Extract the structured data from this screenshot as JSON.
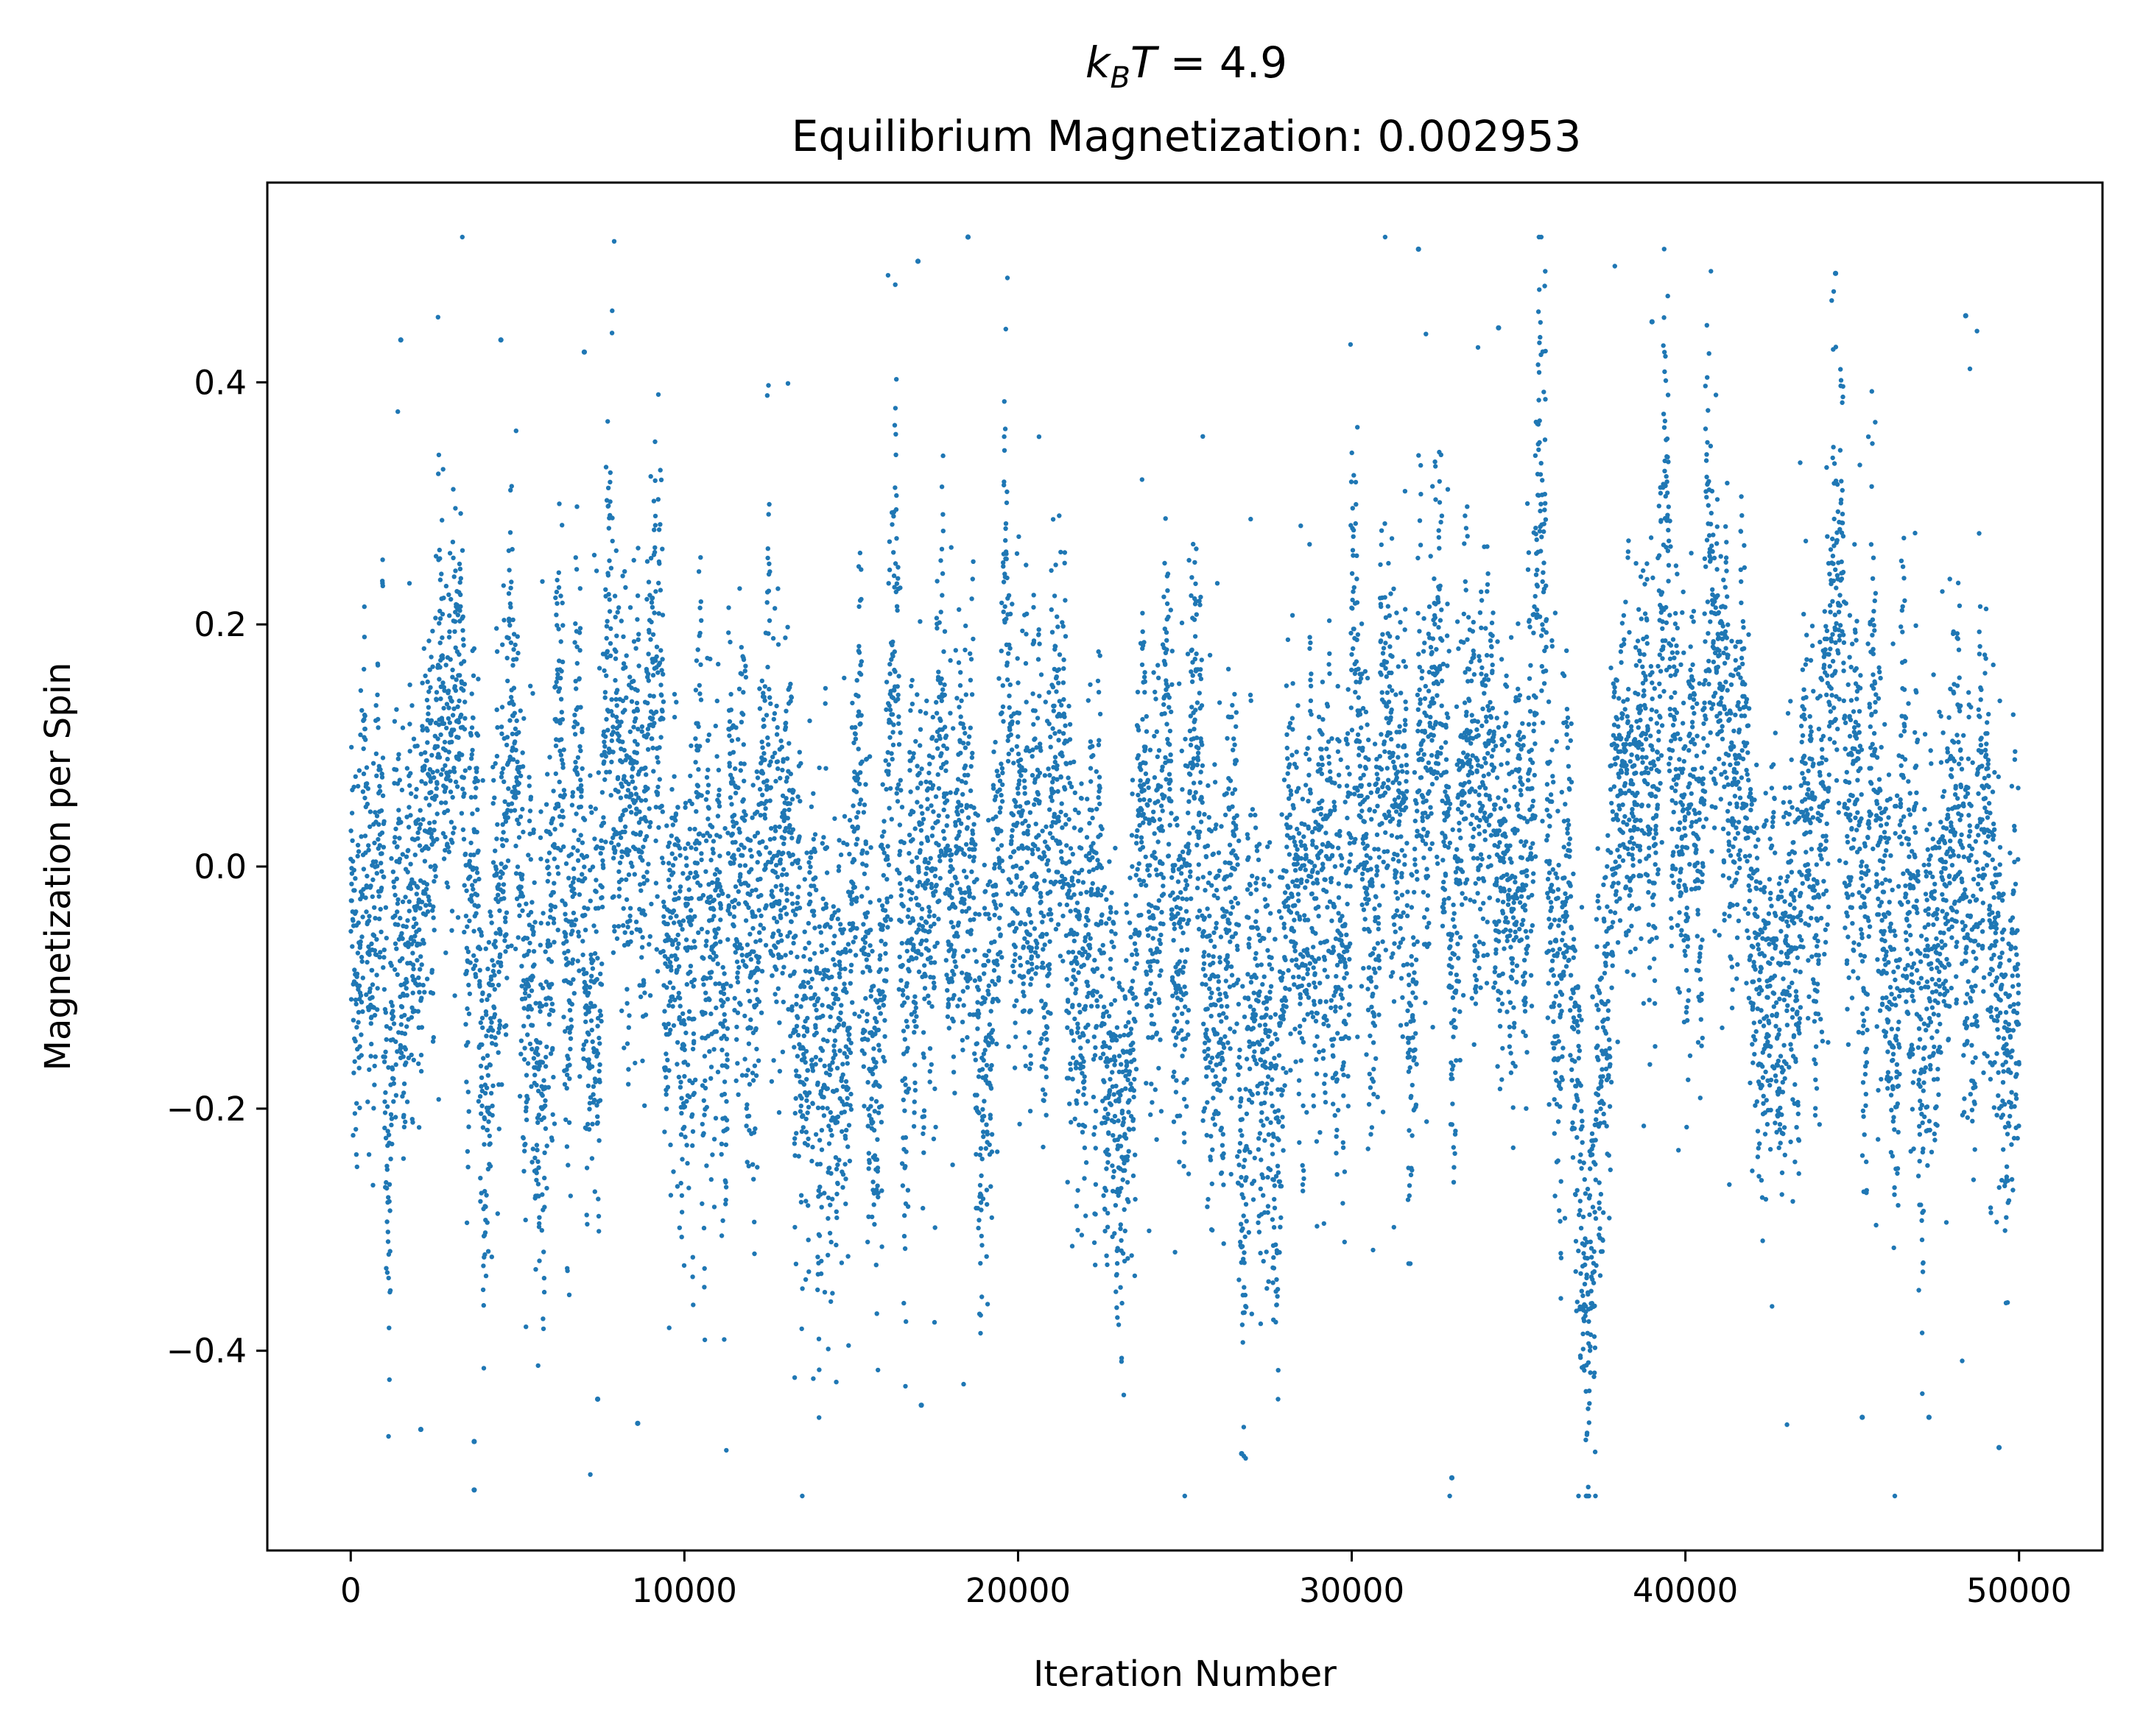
{
  "chart_data": {
    "type": "scatter",
    "title": {
      "line1_k": "k",
      "line1_sub": "B",
      "line1_T": "T",
      "line1_rest": " = 4.9",
      "line2": "Equilibrium Magnetization: 0.002953"
    },
    "xlabel": "Iteration Number",
    "ylabel": "Magnetization per Spin",
    "xlim": [
      -2500,
      52500
    ],
    "ylim": [
      -0.565,
      0.565
    ],
    "x_ticks": [
      {
        "value": 0,
        "label": "0"
      },
      {
        "value": 10000,
        "label": "10000"
      },
      {
        "value": 20000,
        "label": "20000"
      },
      {
        "value": 30000,
        "label": "30000"
      },
      {
        "value": 40000,
        "label": "40000"
      },
      {
        "value": 50000,
        "label": "50000"
      }
    ],
    "y_ticks": [
      {
        "value": 0.4,
        "label": "0.4"
      },
      {
        "value": 0.2,
        "label": "0.2"
      },
      {
        "value": 0.0,
        "label": "0.0"
      },
      {
        "value": -0.2,
        "label": "−0.2"
      },
      {
        "value": -0.4,
        "label": "−0.4"
      }
    ],
    "grid": false,
    "legend": "none",
    "marker_color": "#1f77b4",
    "series": [
      {
        "x_start": 0,
        "x_end": 50000,
        "n_points": 50001,
        "equilibrium_magnetization": 0.002953,
        "extreme_points": [
          {
            "x": 3700,
            "y": -0.515
          },
          {
            "x": 18500,
            "y": 0.52
          },
          {
            "x": 32000,
            "y": 0.51
          },
          {
            "x": 33000,
            "y": -0.505
          },
          {
            "x": 17000,
            "y": 0.5
          },
          {
            "x": 44500,
            "y": 0.49
          },
          {
            "x": 26700,
            "y": -0.485
          },
          {
            "x": 49400,
            "y": -0.48
          },
          {
            "x": 3700,
            "y": -0.475
          },
          {
            "x": 2100,
            "y": -0.465
          },
          {
            "x": 8600,
            "y": -0.46
          },
          {
            "x": 48400,
            "y": 0.455
          },
          {
            "x": 45300,
            "y": -0.455
          },
          {
            "x": 47300,
            "y": -0.455
          },
          {
            "x": 34400,
            "y": 0.445
          },
          {
            "x": 39000,
            "y": 0.45
          },
          {
            "x": 17100,
            "y": -0.445
          },
          {
            "x": 7400,
            "y": -0.44
          },
          {
            "x": 1500,
            "y": 0.435
          },
          {
            "x": 4500,
            "y": 0.435
          },
          {
            "x": 7000,
            "y": 0.425
          }
        ]
      }
    ]
  }
}
